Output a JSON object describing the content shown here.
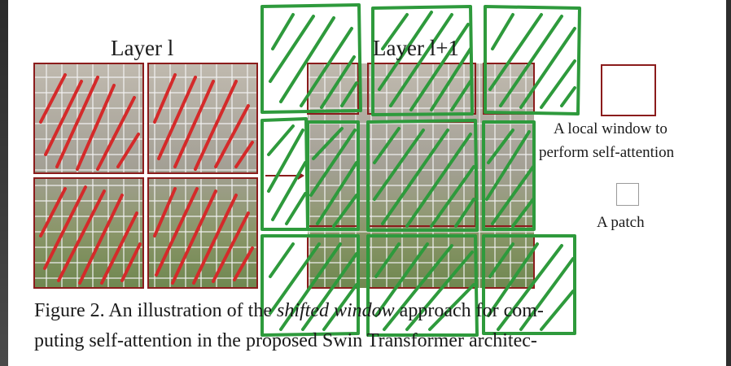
{
  "layer_left_title": "Layer l",
  "layer_right_title": "Layer l+1",
  "legend": {
    "window_line1": "A local window to",
    "window_line2": "perform self-attention",
    "patch_label": "A patch"
  },
  "caption": {
    "line1_before": "Figure 2. An illustration of the ",
    "line1_emph": "shifted window",
    "line1_after": " approach for com-",
    "line2": "puting self-attention in the proposed Swin Transformer architec-"
  },
  "colors": {
    "window_border": "#8b1c1c",
    "red_annotation": "#d42a2a",
    "green_annotation": "#2e9a3c",
    "patch_grid": "#f2f2f2"
  },
  "icons": [
    "shift-arrow-icon"
  ]
}
